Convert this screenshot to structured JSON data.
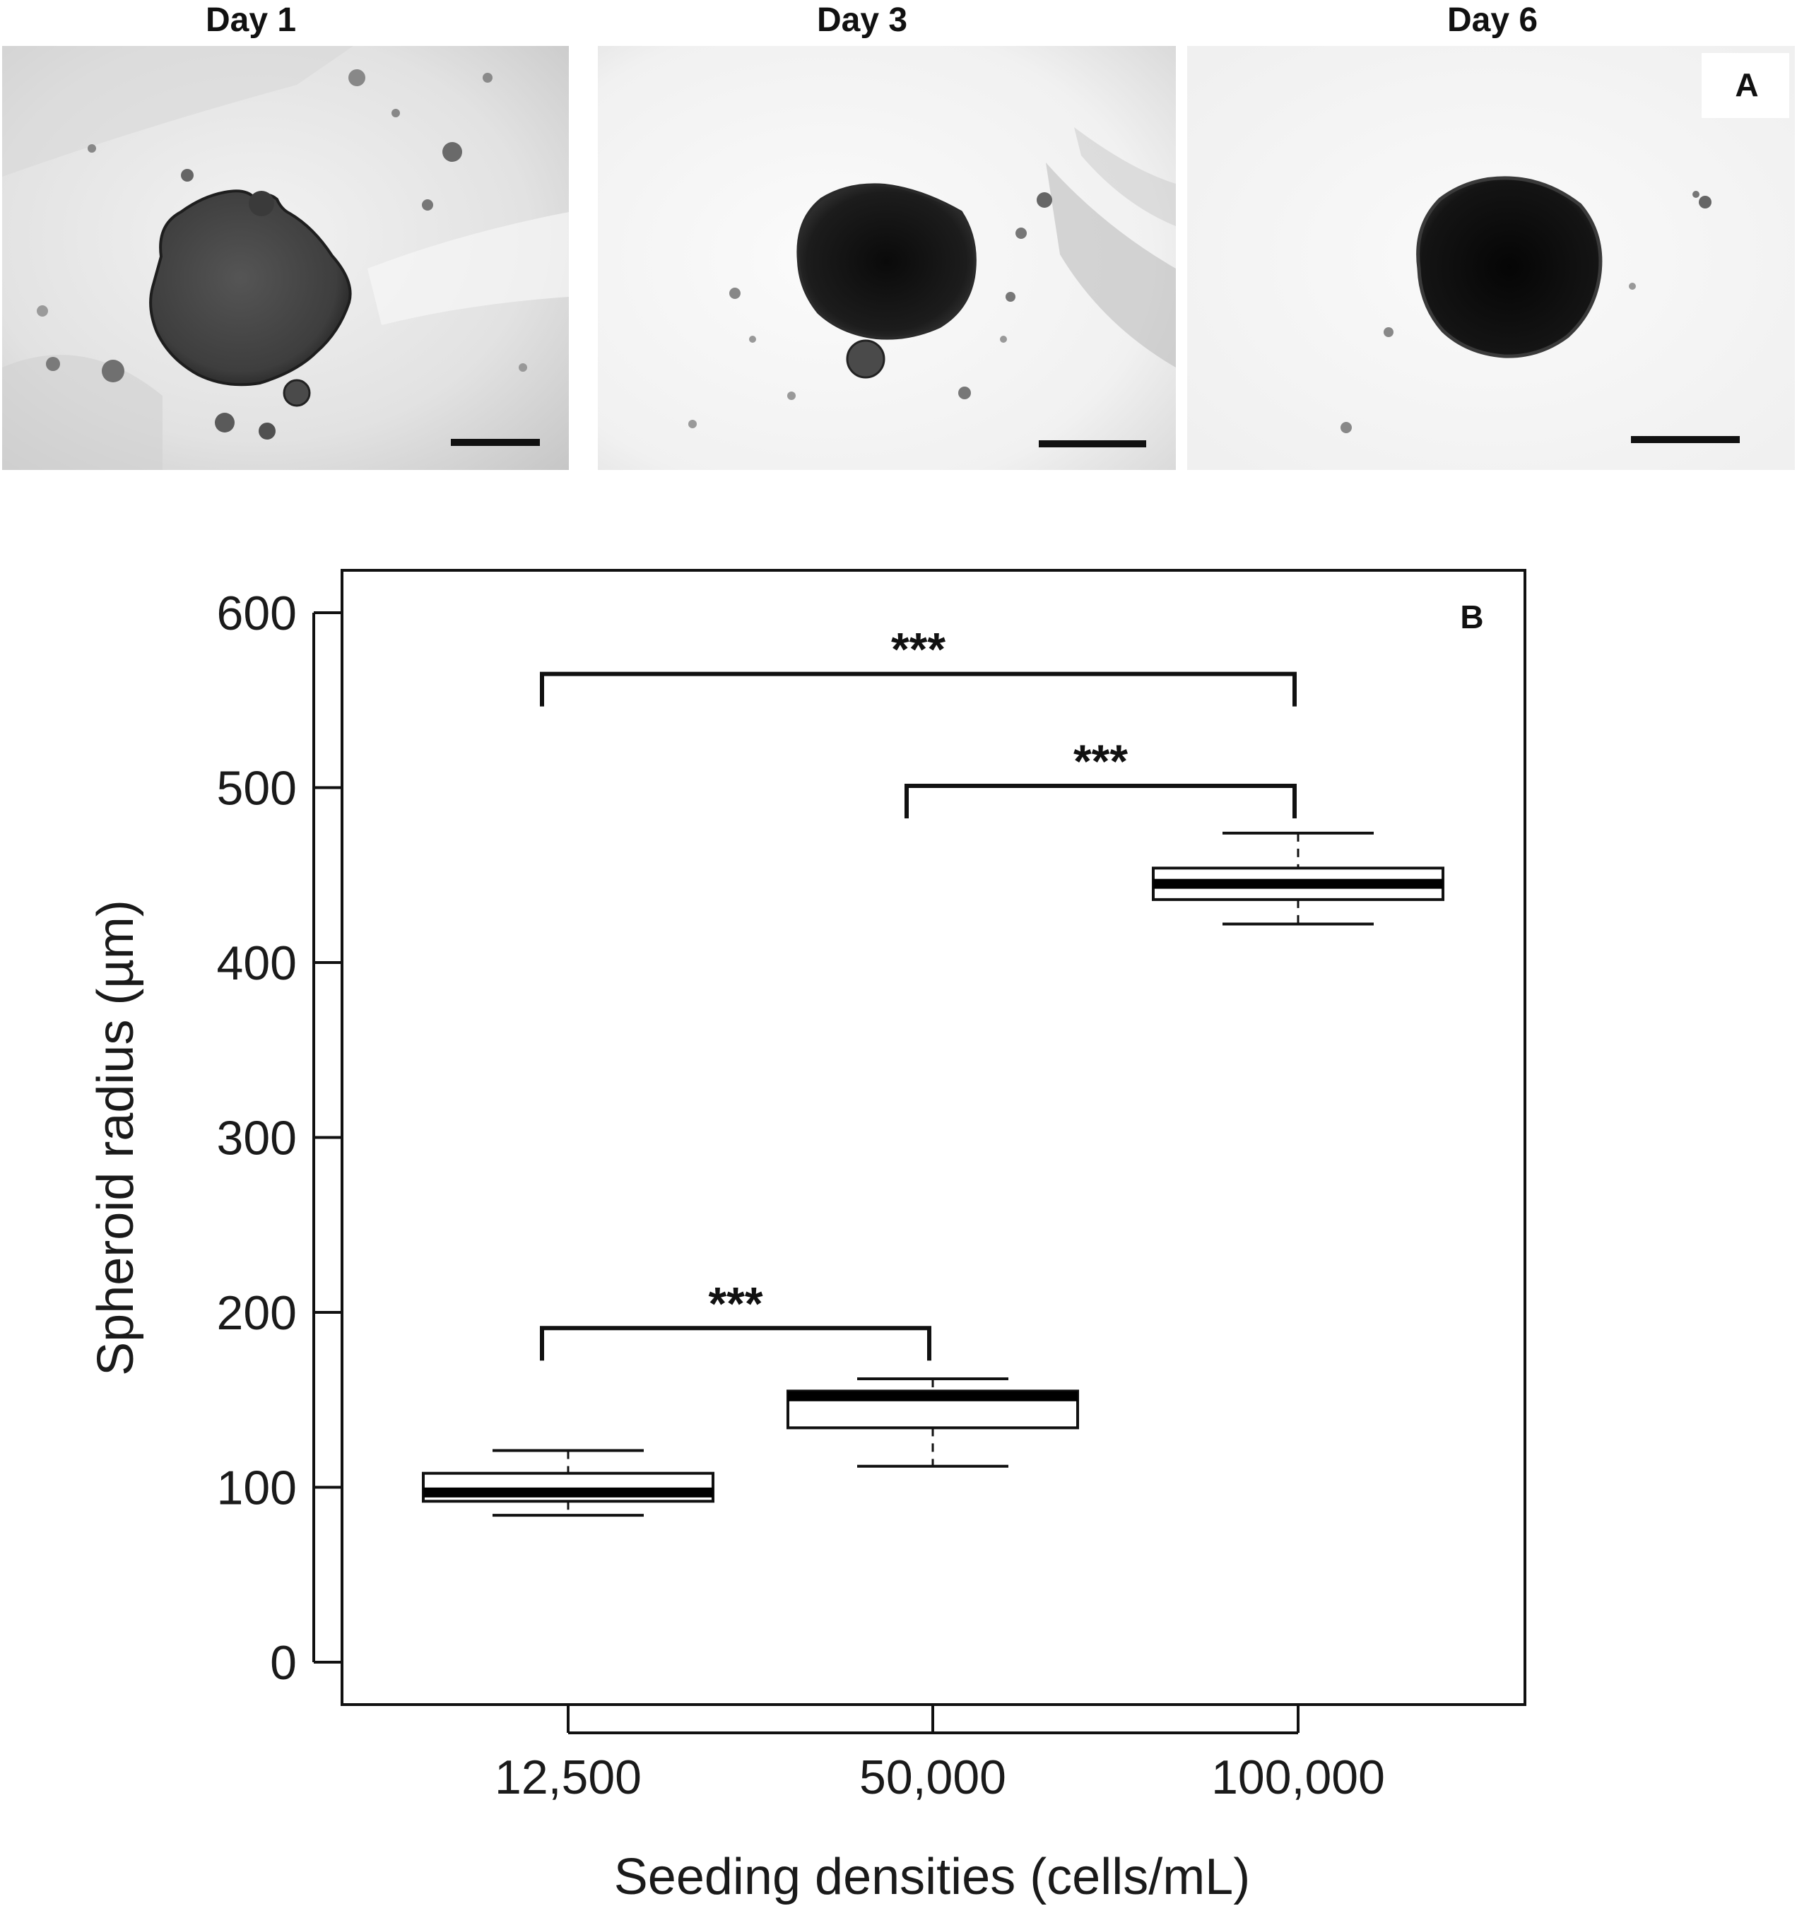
{
  "panel_a": {
    "letter": "A",
    "images": [
      {
        "title": "Day 1"
      },
      {
        "title": "Day 3"
      },
      {
        "title": "Day 6"
      }
    ]
  },
  "colors": {
    "line": "#111111",
    "text": "#1a1a1a",
    "box_fill": "#ffffff",
    "median": "#000000"
  },
  "chart_data": {
    "type": "box",
    "panel_letter": "B",
    "xlabel": "Seeding densities (cells/mL)",
    "ylabel": "Spheroid radius (µm)",
    "ylim": [
      0,
      600
    ],
    "yticks": [
      0,
      100,
      200,
      300,
      400,
      500,
      600
    ],
    "categories": [
      "12,500",
      "50,000",
      "100,000"
    ],
    "boxes": [
      {
        "category": "12,500",
        "whisker_low": 84,
        "q1": 92,
        "median": 97,
        "q3": 108,
        "whisker_high": 121
      },
      {
        "category": "50,000",
        "whisker_low": 112,
        "q1": 134,
        "median": 152,
        "q3": 155,
        "whisker_high": 162
      },
      {
        "category": "100,000",
        "whisker_low": 422,
        "q1": 436,
        "median": 445,
        "q3": 454,
        "whisker_high": 474
      }
    ],
    "significance": [
      {
        "from": 0,
        "to": 2,
        "y": 565,
        "label": "***"
      },
      {
        "from": 1,
        "to": 2,
        "y": 501,
        "label": "***"
      },
      {
        "from": 0,
        "to": 1,
        "y": 191,
        "label": "***"
      }
    ],
    "grid": false,
    "legend": "none"
  }
}
